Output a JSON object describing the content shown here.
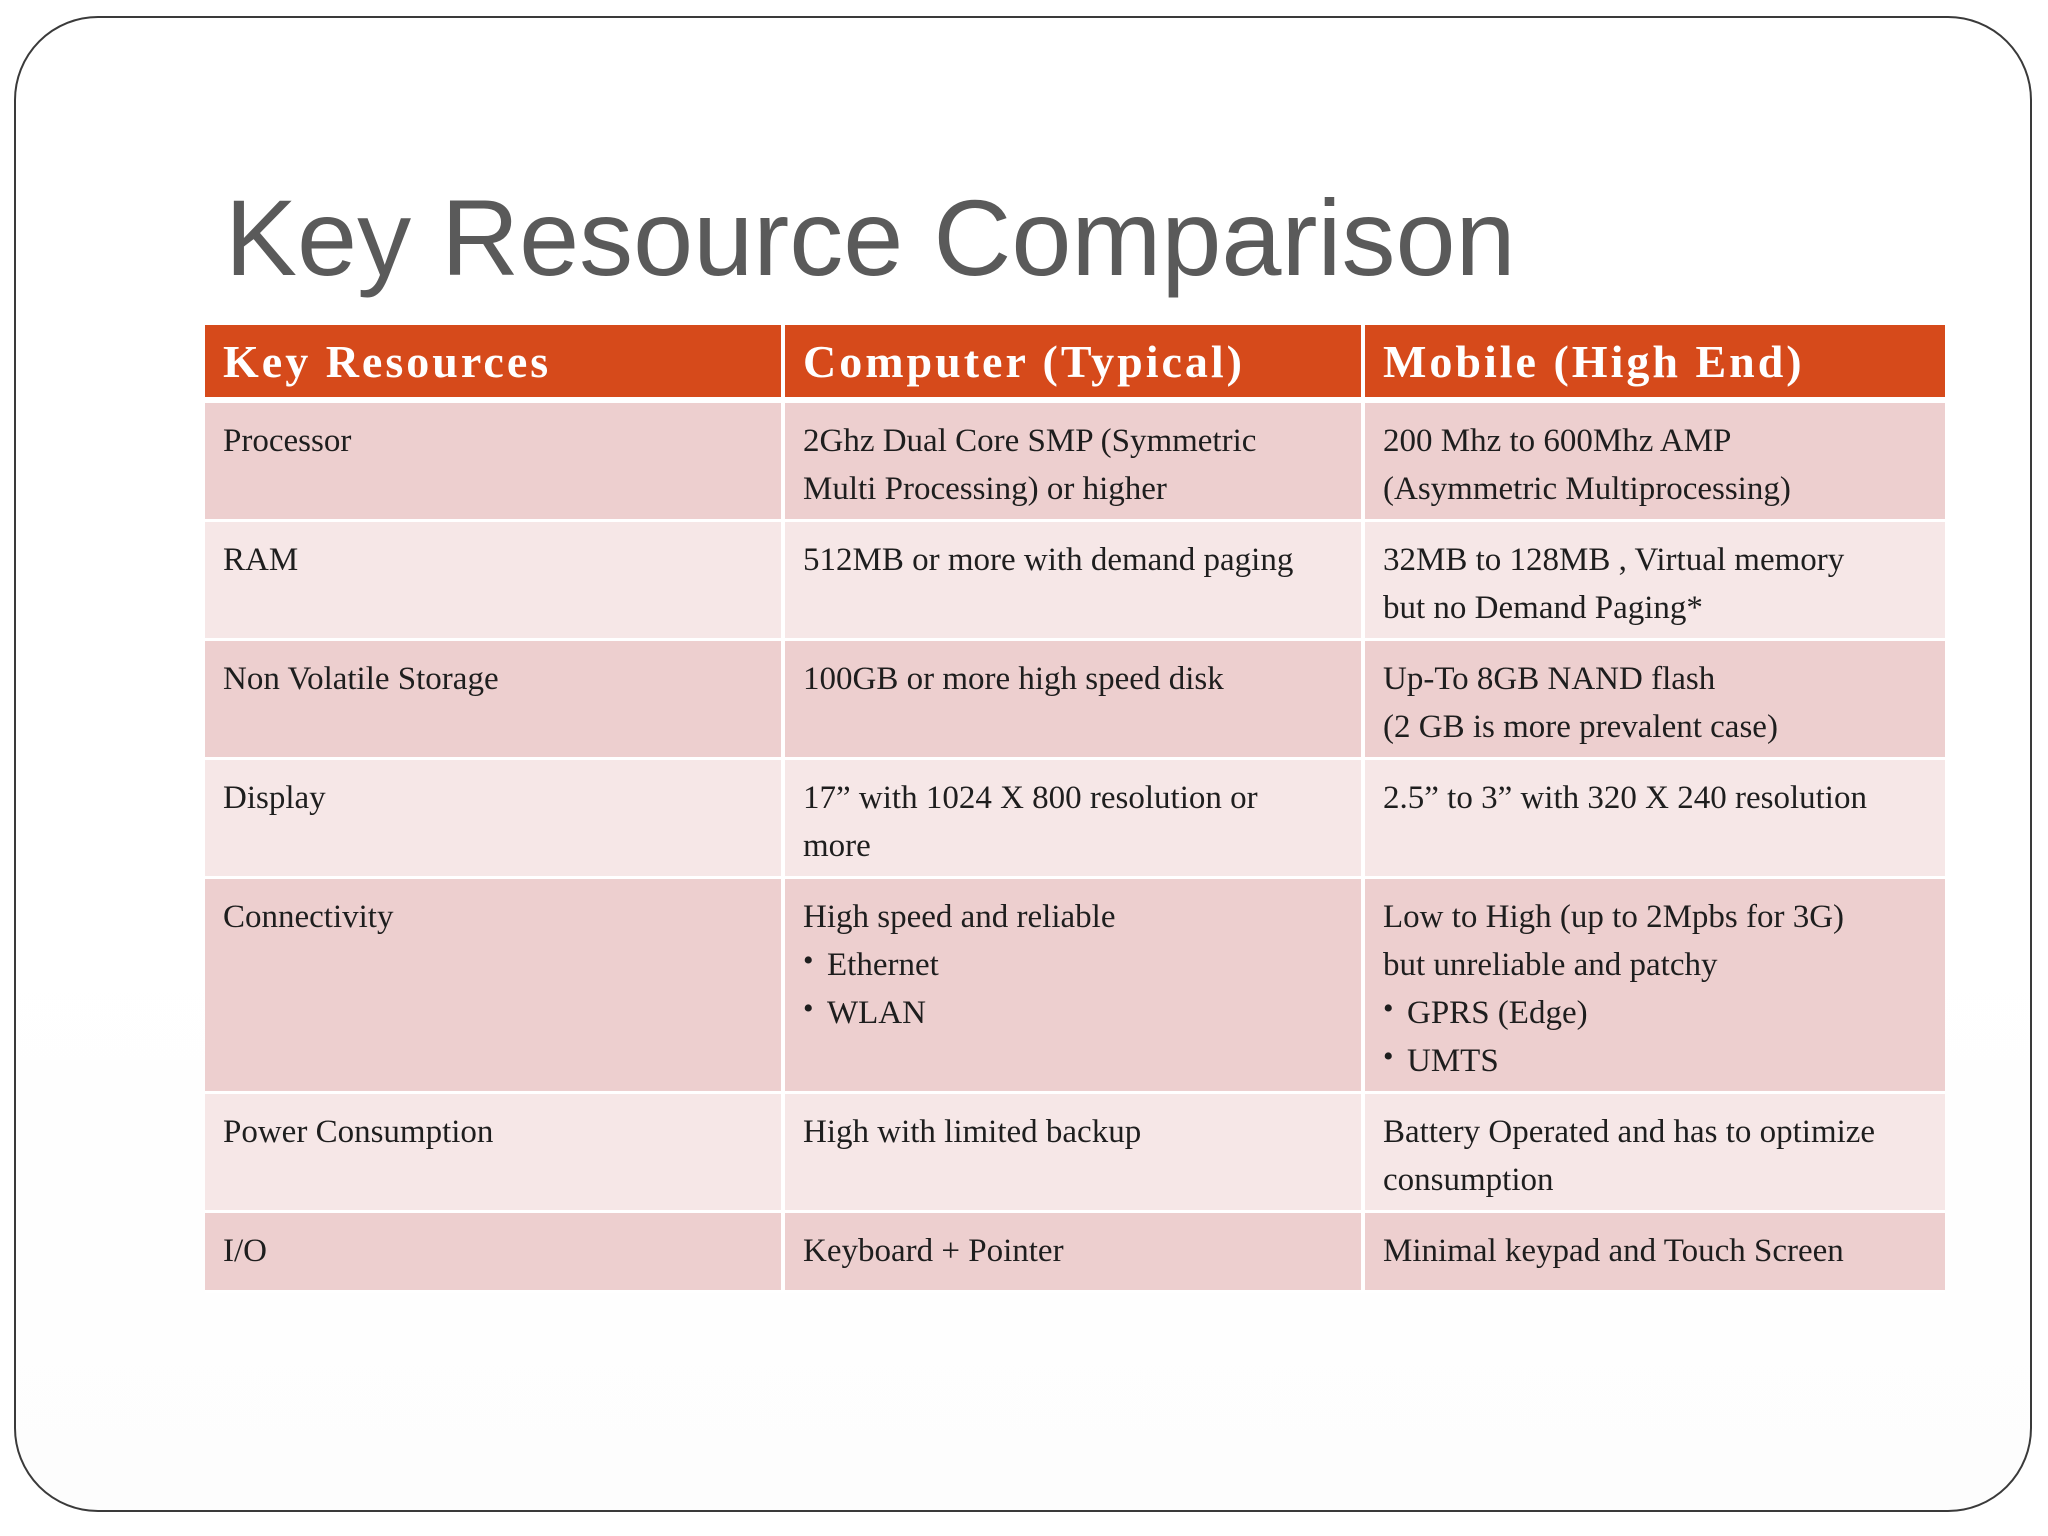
{
  "slide": {
    "title": "Key Resource Comparison"
  },
  "table": {
    "headers": [
      "Key Resources",
      "Computer (Typical)",
      "Mobile (High End)"
    ],
    "rows": [
      {
        "resource": "Processor",
        "computer": [
          "2Ghz Dual Core SMP (Symmetric",
          "Multi Processing) or higher"
        ],
        "mobile": [
          "200 Mhz to 600Mhz AMP",
          "(Asymmetric Multiprocessing)"
        ]
      },
      {
        "resource": "RAM",
        "computer": [
          "512MB or more with demand paging"
        ],
        "mobile": [
          "32MB to 128MB , Virtual memory",
          "but no Demand Paging*"
        ]
      },
      {
        "resource": "Non Volatile Storage",
        "computer": [
          "100GB or more high speed disk"
        ],
        "mobile": [
          "Up-To 8GB NAND flash",
          "(2 GB is more prevalent case)"
        ]
      },
      {
        "resource": "Display",
        "computer": [
          "17” with 1024 X 800 resolution or",
          "more"
        ],
        "mobile": [
          "2.5” to 3” with 320 X 240 resolution"
        ]
      },
      {
        "resource": "Connectivity",
        "computer": [
          "High speed and reliable"
        ],
        "computer_bullets": [
          "Ethernet",
          "WLAN"
        ],
        "mobile": [
          "Low to High (up to 2Mpbs for 3G)",
          "but unreliable and patchy"
        ],
        "mobile_bullets": [
          "GPRS (Edge)",
          "UMTS"
        ]
      },
      {
        "resource": "Power Consumption",
        "computer": [
          "High with limited backup"
        ],
        "mobile": [
          "Battery Operated and has to optimize",
          "consumption"
        ]
      },
      {
        "resource": "I/O",
        "computer": [
          "Keyboard + Pointer"
        ],
        "mobile": [
          "Minimal keypad and Touch Screen"
        ]
      }
    ]
  },
  "colors": {
    "header_bg": "#d64a1b",
    "row_odd_bg": "#edcfcf",
    "row_even_bg": "#f6e7e7",
    "title_color": "#5a5a5a"
  }
}
